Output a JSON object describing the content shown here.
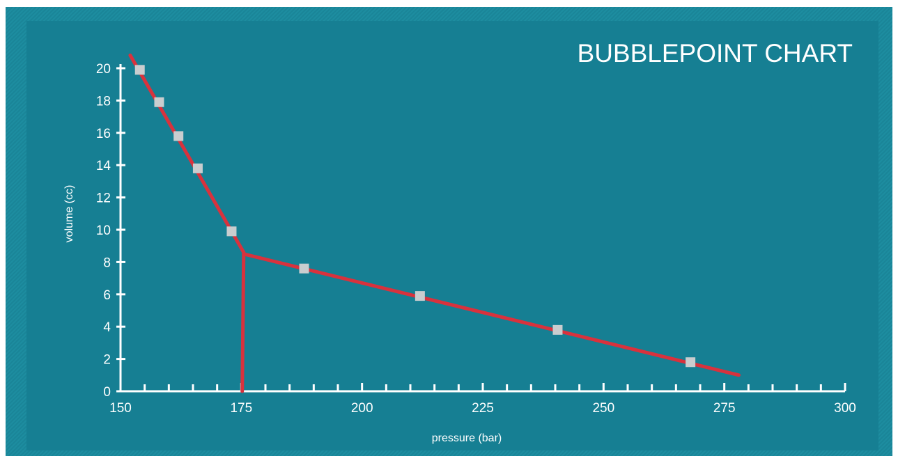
{
  "chart_data": {
    "type": "line",
    "title": "BUBBLEPOINT CHART",
    "xlabel": "pressure (bar)",
    "ylabel": "volume (cc)",
    "xlim": [
      150,
      300
    ],
    "ylim": [
      0,
      20
    ],
    "x_ticks": [
      150,
      175,
      200,
      225,
      250,
      275,
      300
    ],
    "y_ticks": [
      0,
      2,
      4,
      6,
      8,
      10,
      12,
      14,
      16,
      18,
      20
    ],
    "grid": false,
    "series": [
      {
        "type": "scatter",
        "marker": "square",
        "points": [
          {
            "x": 154,
            "y": 19.9
          },
          {
            "x": 158,
            "y": 17.9
          },
          {
            "x": 162,
            "y": 15.8
          },
          {
            "x": 166,
            "y": 13.8
          },
          {
            "x": 173,
            "y": 9.9
          },
          {
            "x": 188,
            "y": 7.6
          },
          {
            "x": 212,
            "y": 5.9
          },
          {
            "x": 240.5,
            "y": 3.8
          },
          {
            "x": 268,
            "y": 1.8
          }
        ]
      },
      {
        "type": "line",
        "points": [
          {
            "x": 152,
            "y": 20.8
          },
          {
            "x": 175.5,
            "y": 8.6
          }
        ]
      },
      {
        "type": "line",
        "points": [
          {
            "x": 175.5,
            "y": 8.5
          },
          {
            "x": 278,
            "y": 1.0
          }
        ]
      },
      {
        "type": "line",
        "points": [
          {
            "x": 175.5,
            "y": 8.6
          },
          {
            "x": 175.2,
            "y": 0
          }
        ]
      }
    ],
    "colors": {
      "line": "#d8323d",
      "marker": "#c9cdcf",
      "axis": "#ffffff",
      "background": "#167f93",
      "border": "#1d8da0"
    }
  }
}
